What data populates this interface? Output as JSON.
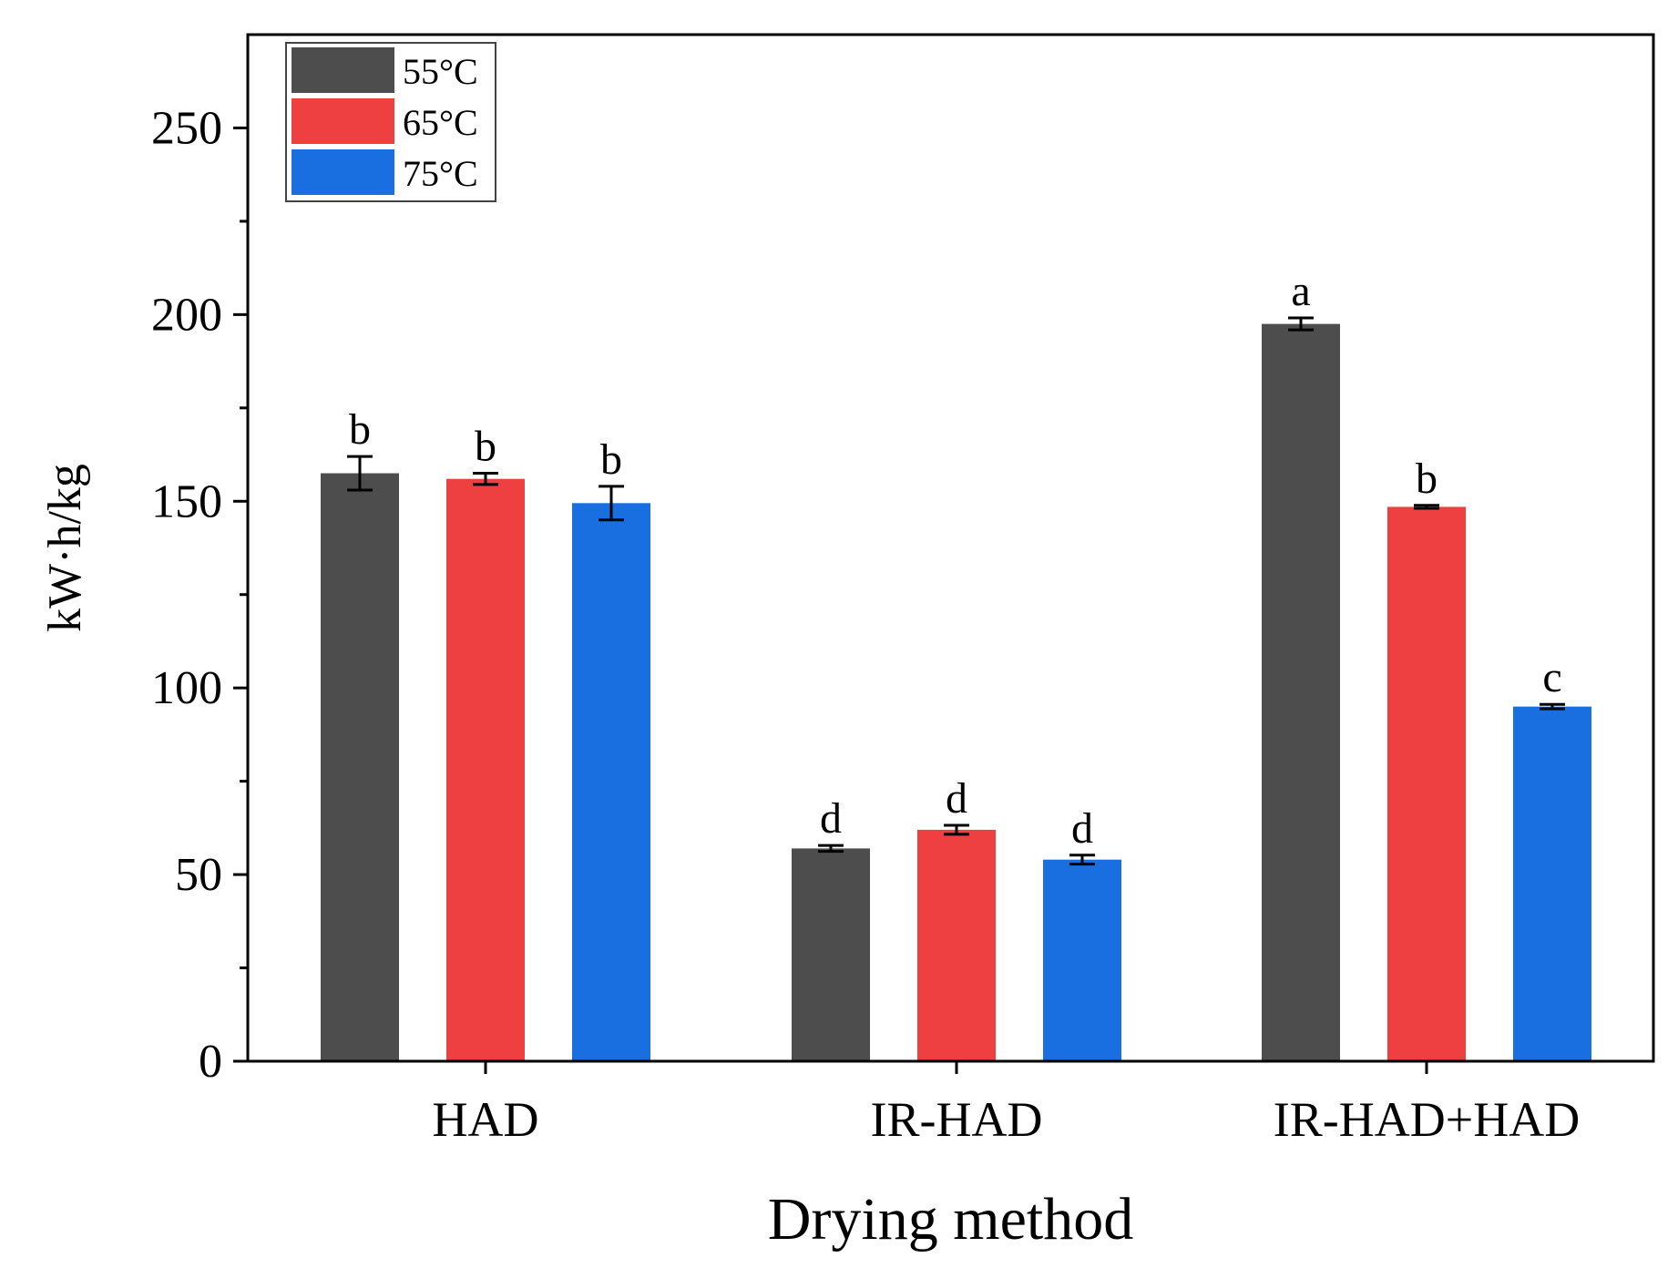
{
  "chart_data": {
    "type": "bar",
    "title": "",
    "xlabel": "Drying method",
    "ylabel": "kW·h/kg",
    "ylim": [
      0,
      275
    ],
    "yticks": [
      0,
      50,
      100,
      150,
      200,
      250
    ],
    "ytick_labels": [
      "0",
      "50",
      "100",
      "150",
      "200",
      "250"
    ],
    "categories": [
      "HAD",
      "IR-HAD",
      "IR-HAD+HAD"
    ],
    "legend_position": "top-left",
    "grid": false,
    "series": [
      {
        "name": "55°C",
        "color": "#4d4d4d",
        "values": [
          157.5,
          57,
          197.5
        ],
        "errors": [
          4.5,
          0.8,
          1.6
        ],
        "letters": [
          "b",
          "d",
          "a"
        ]
      },
      {
        "name": "65°C",
        "color": "#ee4040",
        "values": [
          156,
          62,
          148.5
        ],
        "errors": [
          1.5,
          1.2,
          0.4
        ],
        "letters": [
          "b",
          "d",
          "b"
        ]
      },
      {
        "name": "75°C",
        "color": "#1a6fe0",
        "values": [
          149.5,
          54,
          95
        ],
        "errors": [
          4.5,
          1.2,
          0.6
        ],
        "letters": [
          "b",
          "d",
          "c"
        ]
      }
    ]
  }
}
